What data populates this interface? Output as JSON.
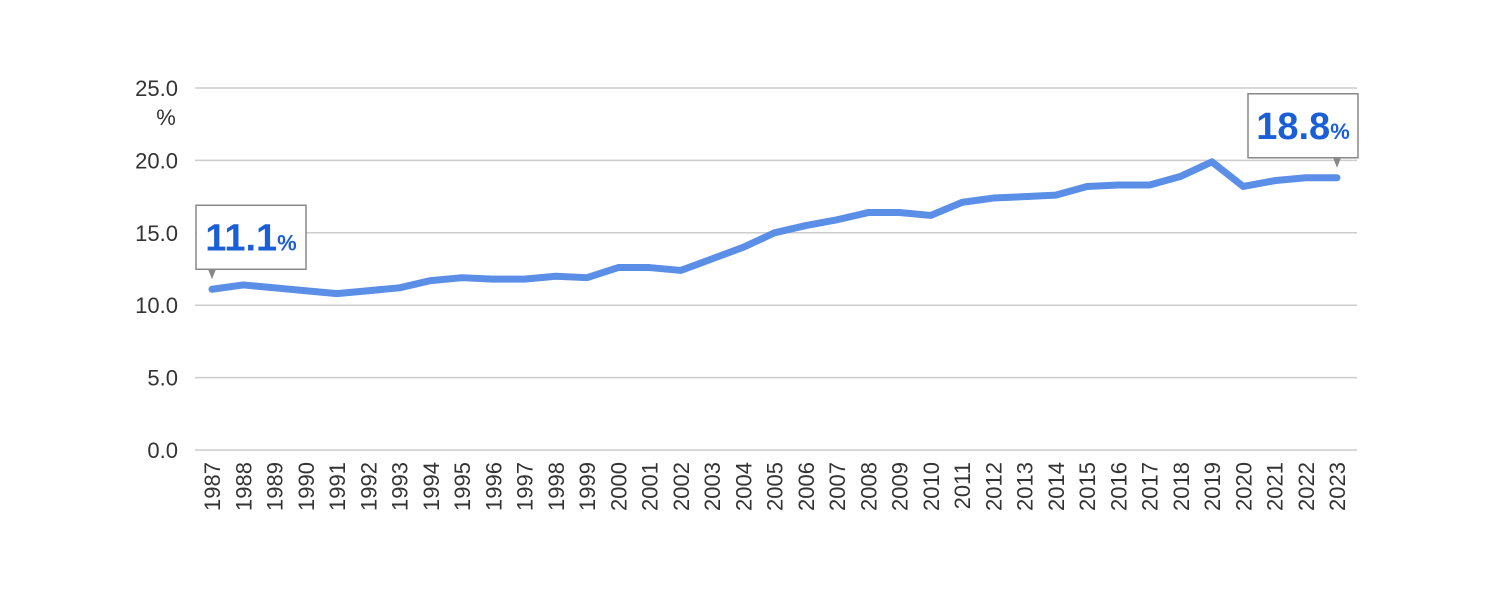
{
  "chart_data": {
    "type": "line",
    "categories": [
      "1987",
      "1988",
      "1989",
      "1990",
      "1991",
      "1992",
      "1993",
      "1994",
      "1995",
      "1996",
      "1997",
      "1998",
      "1999",
      "2000",
      "2001",
      "2002",
      "2003",
      "2004",
      "2005",
      "2006",
      "2007",
      "2008",
      "2009",
      "2010",
      "2011",
      "2012",
      "2013",
      "2014",
      "2015",
      "2016",
      "2017",
      "2018",
      "2019",
      "2020",
      "2021",
      "2022",
      "2023"
    ],
    "series": [
      {
        "color": "#5b8ee6",
        "values": [
          11.1,
          11.4,
          11.2,
          11.0,
          10.8,
          11.0,
          11.2,
          11.7,
          11.9,
          11.8,
          11.8,
          12.0,
          11.9,
          12.6,
          12.6,
          12.4,
          13.2,
          14.0,
          15.0,
          15.5,
          15.9,
          16.4,
          16.4,
          16.2,
          17.1,
          17.4,
          17.5,
          17.6,
          18.2,
          18.3,
          18.3,
          18.9,
          19.9,
          18.2,
          18.6,
          18.8,
          18.8
        ]
      }
    ],
    "y_unit": "%",
    "annotate": [
      0,
      36
    ],
    "ylim": [
      0,
      25
    ],
    "yticks": [
      {
        "value": 0,
        "label": "0.0"
      },
      {
        "value": 5,
        "label": "5.0"
      },
      {
        "value": 10,
        "label": "10.0"
      },
      {
        "value": 15,
        "label": "15.0"
      },
      {
        "value": 20,
        "label": "20.0"
      },
      {
        "value": 25,
        "label": "25.0"
      }
    ],
    "grid": true
  }
}
